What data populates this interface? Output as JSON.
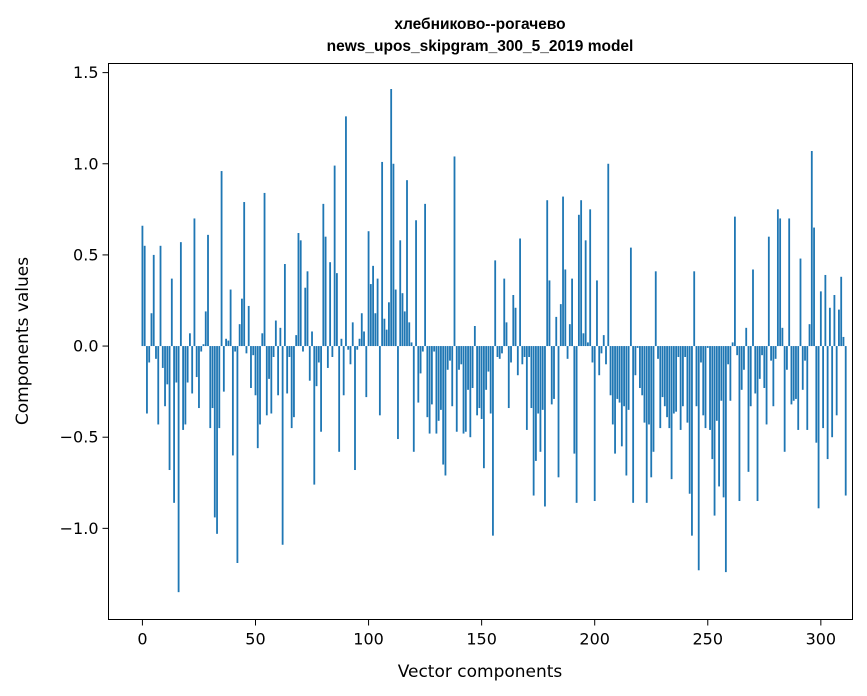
{
  "chart_data": {
    "type": "bar",
    "title": "хлебниково--рогачево",
    "subtitle": "news_upos_skipgram_300_5_2019 model",
    "xlabel": "Vector components",
    "ylabel": "Components values",
    "xlim": [
      -15,
      314
    ],
    "ylim": [
      -1.5,
      1.55
    ],
    "x_ticks": [
      0,
      50,
      100,
      150,
      200,
      250,
      300
    ],
    "y_ticks": [
      1.5,
      1.0,
      0.5,
      0.0,
      -0.5,
      -1.0
    ],
    "y_tick_labels": [
      "1.5",
      "1.0",
      "0.5",
      "0.0",
      "−0.5",
      "−1.0"
    ],
    "bar_color": "#1f77b4",
    "grid": false,
    "values": [
      0.66,
      0.55,
      -0.37,
      -0.09,
      0.18,
      0.5,
      -0.07,
      -0.43,
      0.55,
      -0.12,
      -0.33,
      -0.21,
      -0.68,
      0.37,
      -0.86,
      -0.2,
      -1.35,
      0.57,
      -0.46,
      -0.43,
      -0.2,
      0.07,
      -0.26,
      0.7,
      -0.17,
      -0.34,
      -0.03,
      0.01,
      0.19,
      0.61,
      -0.45,
      -0.34,
      -0.94,
      -1.03,
      -0.45,
      0.96,
      -0.25,
      0.04,
      0.03,
      0.31,
      -0.6,
      -0.03,
      -1.19,
      0.12,
      0.26,
      0.79,
      -0.04,
      0.22,
      -0.23,
      -0.05,
      -0.27,
      -0.56,
      -0.43,
      0.07,
      0.84,
      -0.38,
      -0.18,
      -0.37,
      -0.06,
      0.14,
      -0.27,
      0.1,
      -1.09,
      0.45,
      -0.26,
      -0.06,
      -0.45,
      -0.39,
      0.06,
      0.62,
      0.58,
      -0.03,
      0.32,
      0.41,
      -0.19,
      0.08,
      -0.76,
      -0.22,
      -0.09,
      -0.47,
      0.78,
      0.6,
      -0.12,
      0.46,
      -0.06,
      0.99,
      0.4,
      -0.58,
      0.04,
      -0.27,
      1.26,
      -0.02,
      -0.1,
      0.13,
      -0.68,
      -0.02,
      0.04,
      0.18,
      0.08,
      -0.28,
      0.63,
      0.34,
      0.44,
      0.18,
      0.37,
      -0.38,
      1.01,
      0.15,
      0.09,
      0.24,
      1.41,
      1.0,
      0.31,
      -0.51,
      0.58,
      0.29,
      0.19,
      0.91,
      0.13,
      0.02,
      -0.58,
      0.69,
      -0.31,
      -0.15,
      -0.03,
      0.78,
      -0.39,
      -0.48,
      -0.32,
      -0.03,
      -0.48,
      -0.41,
      -0.35,
      -0.65,
      -0.71,
      -0.13,
      -0.08,
      -0.33,
      1.04,
      -0.47,
      -0.13,
      -0.1,
      -0.48,
      -0.47,
      -0.24,
      -0.5,
      -0.23,
      0.11,
      -0.38,
      -0.34,
      -0.4,
      -0.67,
      -0.24,
      -0.14,
      -0.37,
      -1.04,
      0.47,
      -0.06,
      -0.07,
      -0.04,
      0.37,
      0.13,
      -0.34,
      -0.09,
      0.28,
      0.21,
      -0.16,
      0.59,
      -0.1,
      -0.06,
      -0.46,
      -0.06,
      -0.34,
      -0.82,
      -0.63,
      -0.37,
      -0.58,
      -0.35,
      -0.88,
      0.8,
      0.36,
      -0.32,
      -0.29,
      0.16,
      -0.72,
      0.23,
      0.82,
      0.42,
      -0.07,
      0.12,
      0.37,
      -0.59,
      -0.86,
      0.72,
      0.8,
      0.07,
      0.58,
      0.02,
      0.75,
      -0.09,
      -0.85,
      0.36,
      -0.16,
      -0.04,
      0.06,
      -0.1,
      1.0,
      -0.27,
      -0.43,
      -0.59,
      -0.29,
      -0.31,
      -0.55,
      -0.33,
      -0.71,
      -0.35,
      0.54,
      -0.86,
      -0.16,
      -0.01,
      -0.23,
      -0.27,
      -0.42,
      -0.86,
      -0.43,
      -0.72,
      -0.58,
      0.41,
      -0.07,
      -0.45,
      -0.28,
      -0.33,
      -0.39,
      -0.45,
      -0.73,
      -0.37,
      -0.36,
      -0.06,
      -0.46,
      -0.33,
      -0.06,
      -0.42,
      -0.81,
      -1.04,
      0.41,
      -0.33,
      -1.23,
      -0.09,
      -0.38,
      -0.45,
      -0.01,
      -0.46,
      -0.62,
      -0.93,
      -0.41,
      -0.77,
      -0.3,
      -0.83,
      -1.24,
      -0.1,
      -0.3,
      0.02,
      0.71,
      -0.05,
      -0.85,
      -0.24,
      -0.13,
      0.1,
      -0.69,
      -0.33,
      0.42,
      -0.26,
      -0.85,
      -0.18,
      -0.05,
      -0.23,
      -0.43,
      0.6,
      -0.08,
      -0.33,
      -0.07,
      0.75,
      0.7,
      0.1,
      -0.58,
      -0.13,
      0.7,
      -0.32,
      -0.3,
      -0.29,
      -0.46,
      0.48,
      -0.24,
      -0.08,
      -0.46,
      0.12,
      1.07,
      0.65,
      -0.53,
      -0.89,
      0.3,
      -0.45,
      0.39,
      -0.62,
      0.21,
      -0.5,
      0.28,
      -0.38,
      0.2,
      0.38,
      0.05,
      -0.82
    ]
  }
}
